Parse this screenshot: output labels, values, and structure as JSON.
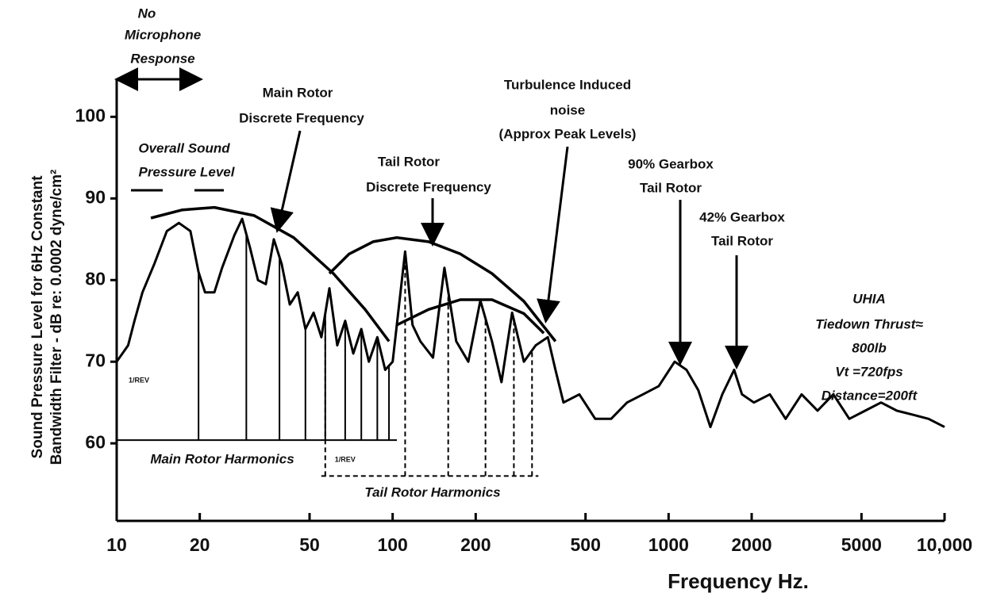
{
  "chart_data": {
    "type": "line",
    "xlabel": "Frequency Hz.",
    "ylabel": [
      "Sound Pressure Level for 6Hz Constant",
      "Bandwidth Filter - dB re: 0.0002 dyne/cm²"
    ],
    "xscale": "log",
    "xlim": [
      10,
      10000
    ],
    "xticks": [
      10,
      20,
      50,
      100,
      200,
      500,
      1000,
      2000,
      5000,
      {
        "value": 10000,
        "label": "10,000"
      }
    ],
    "ylim": [
      50.5,
      104.5
    ],
    "yticks": [
      60,
      70,
      80,
      90,
      100
    ],
    "series": [
      {
        "color": "#000",
        "x": [
          10,
          11,
          11.6,
          12.4,
          13.7,
          15.2,
          16.8,
          18.5,
          19.8,
          20.9,
          22.6,
          24.1,
          26.7,
          28.5,
          30.4,
          32.5,
          34.7,
          37.1,
          39.6,
          42.4,
          45.3,
          48.3,
          51.7,
          55.2,
          59,
          63,
          67.3,
          72,
          77,
          82,
          88,
          94,
          100,
          111,
          118,
          126,
          140,
          154,
          170,
          188,
          208,
          229,
          248,
          271,
          299,
          330,
          365,
          389,
          416,
          475,
          542,
          619,
          707,
          807,
          921,
          1052,
          1161,
          1282,
          1417,
          1565,
          1728,
          1845,
          2038,
          2328,
          2656,
          3034,
          3465,
          3954,
          4516,
          5155,
          5888,
          6718,
          7674,
          8756,
          10000
        ],
        "values": [
          70,
          72,
          75,
          78.5,
          82,
          86,
          87,
          86,
          81,
          78.5,
          78.5,
          81.5,
          85.5,
          87.5,
          84,
          80,
          79.5,
          85,
          82,
          77,
          78.5,
          74,
          76,
          73,
          79,
          72,
          75,
          71,
          74,
          70,
          73,
          69,
          70,
          83.5,
          74.5,
          72.5,
          70.5,
          81.5,
          72.5,
          70,
          77.5,
          72.5,
          67.5,
          76,
          70,
          72,
          73,
          69,
          65,
          66,
          63,
          63,
          65,
          66,
          67,
          70,
          69,
          66.5,
          62,
          66,
          69,
          66,
          65,
          66,
          63,
          66,
          64,
          66,
          63,
          64,
          65,
          64,
          63.5,
          63,
          62
        ]
      },
      {
        "color": "#000",
        "x": [
          13.3,
          17.3,
          22.6,
          31.5,
          43.8,
          61,
          79.5,
          97
        ],
        "values": [
          87.6,
          88.6,
          88.9,
          87.9,
          85.2,
          80.8,
          76.4,
          72.5
        ]
      },
      {
        "color": "#000",
        "x": [
          59,
          69.6,
          84.9,
          103.5,
          135,
          176,
          229,
          299,
          389
        ],
        "values": [
          80.8,
          83.2,
          84.7,
          85.2,
          84.7,
          83.2,
          80.8,
          77.4,
          72.5
        ]
      },
      {
        "color": "#000",
        "x": [
          103.5,
          135,
          176,
          229,
          299,
          353
        ],
        "values": [
          74.5,
          76.4,
          77.6,
          77.6,
          75.9,
          73.5
        ]
      }
    ],
    "main_rotor_harmonics": {
      "label": "Main Rotor Harmonics",
      "first": "1/REV",
      "baseline": 60.4,
      "x": [
        19.8,
        29.5,
        38.9,
        48.3,
        57,
        67.3,
        77,
        88,
        97
      ]
    },
    "tail_rotor_harmonics": {
      "label": "Tail Rotor Harmonics",
      "first": "1/REV",
      "baseline": 56,
      "x": [
        57,
        111,
        159,
        217,
        275,
        320
      ]
    },
    "annotations": [
      "No",
      "Microphone",
      "Response",
      "Overall Sound",
      "Pressure Level",
      "Main Rotor",
      "Discrete Frequency",
      "Turbulence Induced",
      "noise",
      "(Approx Peak Levels)",
      "Tail Rotor",
      "Discrete Frequency",
      "90% Gearbox",
      "Tail Rotor",
      "42% Gearbox",
      "Tail Rotor",
      "UHIA",
      "Tiedown Thrust≈",
      "800lb",
      "Vt =720fps",
      "Distance=200ft"
    ]
  }
}
